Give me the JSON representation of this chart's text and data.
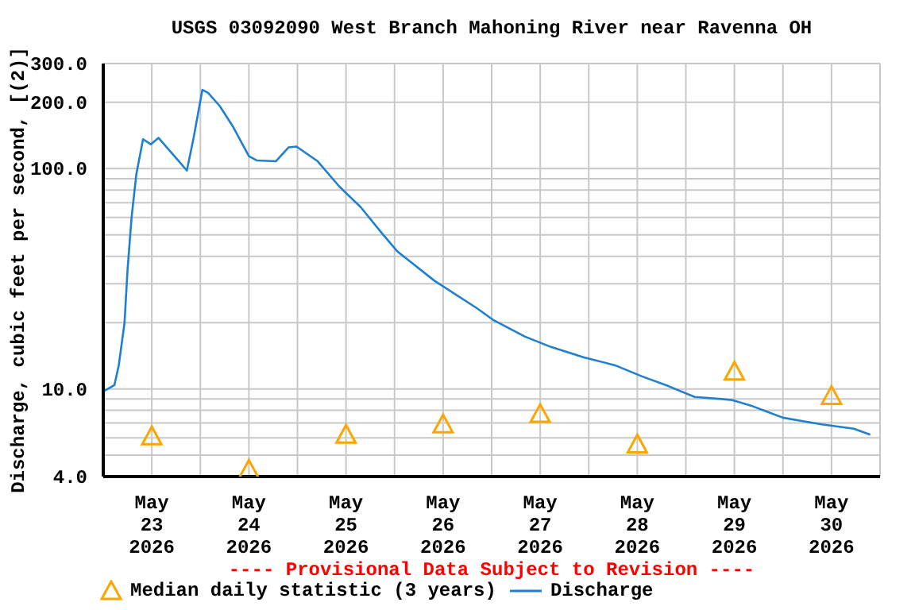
{
  "chart_data": {
    "type": "line",
    "title": "USGS 03092090 West Branch Mahoning River near Ravenna OH",
    "ylabel": "Discharge, cubic feet per second, [(2)]",
    "annotations": [
      "---- Provisional Data Subject to Revision ----"
    ],
    "log": "y",
    "grid": true,
    "legend": "bottom",
    "xlim": [
      "2026-05-23T00:00",
      "2026-05-31T00:00"
    ],
    "xticks": [
      {
        "value": "2026-05-23T12:00",
        "label": "May\n23\n2026"
      },
      {
        "value": "2026-05-24T00:00",
        "label": null
      },
      {
        "value": "2026-05-24T12:00",
        "label": "May\n24\n2026"
      },
      {
        "value": "2026-05-25T00:00",
        "label": null
      },
      {
        "value": "2026-05-25T12:00",
        "label": "May\n25\n2026"
      },
      {
        "value": "2026-05-26T00:00",
        "label": null
      },
      {
        "value": "2026-05-26T12:00",
        "label": "May\n26\n2026"
      },
      {
        "value": "2026-05-27T00:00",
        "label": null
      },
      {
        "value": "2026-05-27T12:00",
        "label": "May\n27\n2026"
      },
      {
        "value": "2026-05-28T00:00",
        "label": null
      },
      {
        "value": "2026-05-28T12:00",
        "label": "May\n28\n2026"
      },
      {
        "value": "2026-05-29T00:00",
        "label": null
      },
      {
        "value": "2026-05-29T12:00",
        "label": "May\n29\n2026"
      },
      {
        "value": "2026-05-30T00:00",
        "label": null
      },
      {
        "value": "2026-05-30T12:00",
        "label": "May\n30\n2026"
      }
    ],
    "ylim": [
      4,
      300
    ],
    "yticks": [
      {
        "value": 4,
        "label": "4.0"
      },
      {
        "value": 5,
        "label": null
      },
      {
        "value": 6,
        "label": null
      },
      {
        "value": 7,
        "label": null
      },
      {
        "value": 8,
        "label": null
      },
      {
        "value": 9,
        "label": null
      },
      {
        "value": 10,
        "label": "10.0"
      },
      {
        "value": 20,
        "label": null
      },
      {
        "value": 30,
        "label": null
      },
      {
        "value": 40,
        "label": null
      },
      {
        "value": 50,
        "label": null
      },
      {
        "value": 60,
        "label": null
      },
      {
        "value": 70,
        "label": null
      },
      {
        "value": 80,
        "label": null
      },
      {
        "value": 90,
        "label": null
      },
      {
        "value": 100,
        "label": "100.0"
      },
      {
        "value": 200,
        "label": "200.0"
      },
      {
        "value": 300,
        "label": "300.0"
      }
    ],
    "series": [
      {
        "name": "Median daily statistic (3 years)",
        "type": "scatter",
        "marker": "triangle",
        "color": "#ffa500",
        "x": [
          "2026-05-23T12:00",
          "2026-05-24T12:00",
          "2026-05-25T12:00",
          "2026-05-26T12:00",
          "2026-05-27T12:00",
          "2026-05-28T12:00",
          "2026-05-29T12:00",
          "2026-05-30T12:00"
        ],
        "values": [
          6.1,
          4.3,
          6.2,
          6.9,
          7.7,
          5.6,
          12.0,
          9.3
        ]
      },
      {
        "name": "Discharge",
        "marker": "none",
        "line_style": "solid",
        "color": "#1f7fd0",
        "x": [
          "2026-05-23T00:15",
          "2026-05-23T02:45",
          "2026-05-23T03:50",
          "2026-05-23T05:15",
          "2026-05-23T06:00",
          "2026-05-23T07:00",
          "2026-05-23T08:10",
          "2026-05-23T09:50",
          "2026-05-23T11:45",
          "2026-05-23T13:40",
          "2026-05-23T18:30",
          "2026-05-23T20:40",
          "2026-05-23T22:20",
          "2026-05-24T00:30",
          "2026-05-24T01:55",
          "2026-05-24T04:50",
          "2026-05-24T08:10",
          "2026-05-24T12:00",
          "2026-05-24T13:55",
          "2026-05-24T18:40",
          "2026-05-24T21:50",
          "2026-05-24T23:45",
          "2026-05-25T05:00",
          "2026-05-25T10:20",
          "2026-05-25T15:35",
          "2026-05-25T20:50",
          "2026-05-26T00:45",
          "2026-05-26T09:50",
          "2026-05-26T20:25",
          "2026-05-27T00:30",
          "2026-05-27T08:10",
          "2026-05-27T14:40",
          "2026-05-27T22:50",
          "2026-05-28T06:30",
          "2026-05-28T13:10",
          "2026-05-28T19:40",
          "2026-05-29T02:10",
          "2026-05-29T08:50",
          "2026-05-29T11:30",
          "2026-05-29T16:05",
          "2026-05-29T20:40",
          "2026-05-30T00:00",
          "2026-05-30T09:35",
          "2026-05-30T17:30",
          "2026-05-30T21:35"
        ],
        "values": [
          9.8,
          10.4,
          12.8,
          19.9,
          34.6,
          60,
          94,
          136,
          129,
          138,
          109,
          98,
          138,
          228,
          221,
          192,
          154,
          114,
          109,
          108,
          125,
          126,
          108,
          83,
          67,
          51,
          42,
          31,
          23.2,
          20.5,
          17.3,
          15.5,
          13.9,
          12.8,
          11.4,
          10.3,
          9.2,
          9.0,
          8.9,
          8.4,
          7.8,
          7.4,
          6.9,
          6.6,
          6.2
        ]
      }
    ]
  }
}
